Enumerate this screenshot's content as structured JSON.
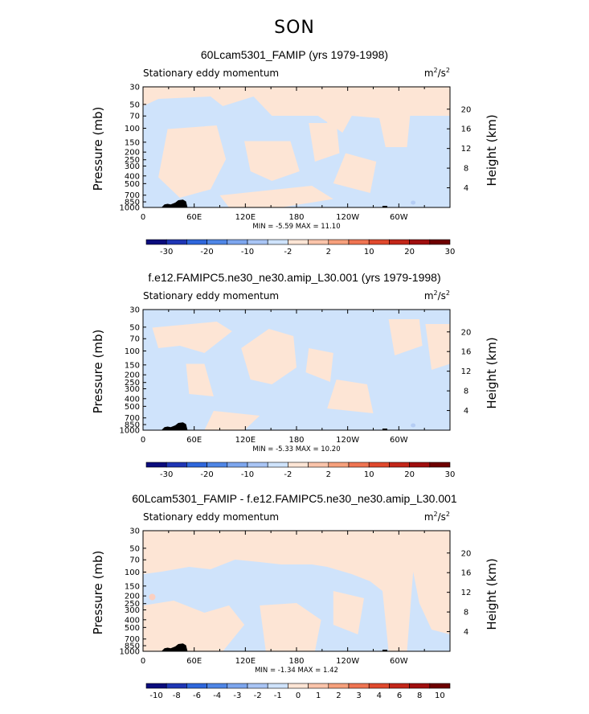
{
  "season": "SON",
  "palette": {
    "light_blue": "#cfe3fb",
    "light_orange": "#fde5d5",
    "orange_spot": "#fbcfc0",
    "blue_spot": "#b5cdf4",
    "terrain": "#000000"
  },
  "chart_data": [
    {
      "type": "heatmap",
      "title": "60Lcam5301_FAMIP (yrs 1979-1998)",
      "subtitle": "Stationary eddy momentum",
      "units": "m²/s²",
      "units_base": "m",
      "units_num_exp": "2",
      "units_den": "/s",
      "units_den_exp": "2",
      "ylabel": "Pressure (mb)",
      "ylabel_right": "Height (km)",
      "x_ticks": [
        "0",
        "60E",
        "120E",
        "180",
        "120W",
        "60W"
      ],
      "y_ticks_left": [
        "30",
        "50",
        "70",
        "100",
        "150",
        "200",
        "250",
        "300",
        "400",
        "500",
        "700",
        "850",
        "1000"
      ],
      "y_ticks_right": [
        "20",
        "16",
        "12",
        "8",
        "4"
      ],
      "stats": "MIN =   -5.59   MAX =   11.10",
      "colorbar_labels": [
        "-30",
        "-20",
        "-10",
        "-2",
        "2",
        "10",
        "20",
        "30"
      ],
      "colorbar_colors": [
        "#0b0c7d",
        "#1f36b5",
        "#2f67dc",
        "#4f86e6",
        "#7da6ee",
        "#a9c5f5",
        "#cfe3fb",
        "#fde5d5",
        "#fac4aa",
        "#f6a07c",
        "#ef7452",
        "#e0492d",
        "#c32619",
        "#a00e0e",
        "#6e0000"
      ],
      "colorbar_style": "paired"
    },
    {
      "type": "heatmap",
      "title": "f.e12.FAMIPC5.ne30_ne30.amip_L30.001 (yrs 1979-1998)",
      "subtitle": "Stationary eddy momentum",
      "units": "m²/s²",
      "units_base": "m",
      "units_num_exp": "2",
      "units_den": "/s",
      "units_den_exp": "2",
      "ylabel": "Pressure (mb)",
      "ylabel_right": "Height (km)",
      "x_ticks": [
        "0",
        "60E",
        "120E",
        "180",
        "120W",
        "60W"
      ],
      "y_ticks_left": [
        "30",
        "50",
        "70",
        "100",
        "150",
        "200",
        "250",
        "300",
        "400",
        "500",
        "700",
        "850",
        "1000"
      ],
      "y_ticks_right": [
        "20",
        "16",
        "12",
        "8",
        "4"
      ],
      "stats": "MIN =   -5.33   MAX =   10.20",
      "colorbar_labels": [
        "-30",
        "-20",
        "-10",
        "-2",
        "2",
        "10",
        "20",
        "30"
      ],
      "colorbar_colors": [
        "#0b0c7d",
        "#1f36b5",
        "#2f67dc",
        "#4f86e6",
        "#7da6ee",
        "#a9c5f5",
        "#cfe3fb",
        "#fde5d5",
        "#fac4aa",
        "#f6a07c",
        "#ef7452",
        "#e0492d",
        "#c32619",
        "#a00e0e",
        "#6e0000"
      ],
      "colorbar_style": "paired"
    },
    {
      "type": "heatmap",
      "title": "60Lcam5301_FAMIP - f.e12.FAMIPC5.ne30_ne30.amip_L30.001",
      "subtitle": "Stationary eddy momentum",
      "units": "m²/s²",
      "units_base": "m",
      "units_num_exp": "2",
      "units_den": "/s",
      "units_den_exp": "2",
      "ylabel": "Pressure (mb)",
      "ylabel_right": "Height (km)",
      "x_ticks": [
        "0",
        "60E",
        "120E",
        "180",
        "120W",
        "60W"
      ],
      "y_ticks_left": [
        "30",
        "50",
        "70",
        "100",
        "150",
        "200",
        "250",
        "300",
        "400",
        "500",
        "700",
        "850",
        "1000"
      ],
      "y_ticks_right": [
        "20",
        "16",
        "12",
        "8",
        "4"
      ],
      "stats": "MIN =   -1.34   MAX =    1.42",
      "colorbar_labels": [
        "-10",
        "-8",
        "-6",
        "-4",
        "-3",
        "-2",
        "-1",
        "0",
        "1",
        "2",
        "3",
        "4",
        "6",
        "8",
        "10"
      ],
      "colorbar_colors": [
        "#0b0c7d",
        "#1f36b5",
        "#2f67dc",
        "#4f86e6",
        "#7da6ee",
        "#a9c5f5",
        "#cfe3fb",
        "#fde5d5",
        "#fac4aa",
        "#f6a07c",
        "#ef7452",
        "#e0492d",
        "#c32619",
        "#a00e0e",
        "#6e0000"
      ],
      "colorbar_style": "each"
    }
  ]
}
